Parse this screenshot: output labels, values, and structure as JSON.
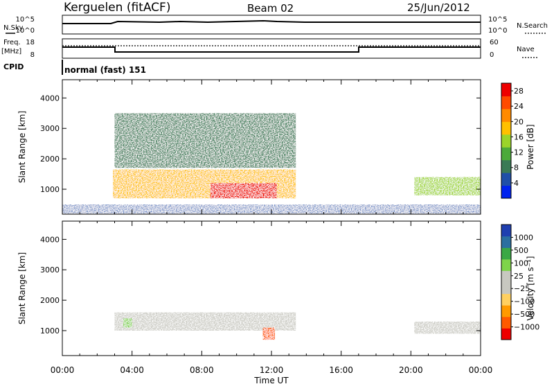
{
  "header": {
    "station": "Kerguelen (fitACF)",
    "beam": "Beam 02",
    "date": "25/Jun/2012"
  },
  "top_panels": {
    "nsky_label": "N.Sky",
    "nsky_ticks": [
      "10^5",
      "10^0"
    ],
    "nsearch_label": "N.Search",
    "nsearch_ticks": [
      "10^5",
      "10^0"
    ],
    "freq_label": "Freq.",
    "freq_unit": "[MHz]",
    "freq_ticks": [
      "18",
      "8"
    ],
    "nave_label": "Nave",
    "nave_ticks": [
      "60",
      "0"
    ],
    "cpid_label": "CPID",
    "cpid_value": "normal (fast) 151"
  },
  "colors": {
    "power": [
      "#0022ee",
      "#1f4fa8",
      "#3a7a55",
      "#4caa3a",
      "#9bd42a",
      "#ffc000",
      "#ff8a00",
      "#ff4a00",
      "#ee0000"
    ],
    "velocity": [
      "#ee0000",
      "#ff5a00",
      "#ff9a00",
      "#ffd060",
      "#c8c8c0",
      "#c8c8c0",
      "#7ed44a",
      "#3aa845",
      "#2b6fa0",
      "#1f3fb0"
    ]
  },
  "chart_data": [
    {
      "type": "heatmap",
      "title": "Power",
      "xlabel": "Time UT",
      "ylabel": "Slant Range [km]",
      "x_ticks": [
        "00:00",
        "04:00",
        "08:00",
        "12:00",
        "16:00",
        "20:00",
        "00:00"
      ],
      "y_ticks": [
        "1000",
        "2000",
        "3000",
        "4000"
      ],
      "ylim": [
        180,
        4600
      ],
      "colorbar": {
        "label": "Power [dB]",
        "ticks": [
          "4",
          "8",
          "12",
          "16",
          "20",
          "24",
          "28"
        ],
        "range": [
          0,
          30
        ]
      },
      "echo_regions": [
        {
          "t_start": 2.9,
          "t_end": 13.4,
          "r_low": 700,
          "r_high": 1650,
          "level": "high"
        },
        {
          "t_start": 3.0,
          "t_end": 13.4,
          "r_low": 1700,
          "r_high": 3500,
          "level": "low"
        },
        {
          "t_start": 8.5,
          "t_end": 12.3,
          "r_low": 700,
          "r_high": 1200,
          "level": "peak"
        },
        {
          "t_start": 20.2,
          "t_end": 24.0,
          "r_low": 800,
          "r_high": 1400,
          "level": "medium"
        },
        {
          "t_start": 0.0,
          "t_end": 24.0,
          "r_low": 200,
          "r_high": 500,
          "level": "ground"
        }
      ]
    },
    {
      "type": "heatmap",
      "title": "Velocity",
      "xlabel": "Time UT",
      "ylabel": "Slant Range [km]",
      "x_ticks": [
        "00:00",
        "04:00",
        "08:00",
        "12:00",
        "16:00",
        "20:00",
        "00:00"
      ],
      "y_ticks": [
        "1000",
        "2000",
        "3000",
        "4000"
      ],
      "ylim": [
        180,
        4600
      ],
      "colorbar": {
        "label": "Velocity [m s⁻¹]",
        "ticks": [
          "1000",
          "500",
          "100",
          "25",
          "−25",
          "−100",
          "−500",
          "−1000"
        ],
        "range": [
          -1000,
          1000
        ]
      },
      "echo_regions": [
        {
          "t_start": 3.0,
          "t_end": 13.4,
          "r_low": 1000,
          "r_high": 1600,
          "level": "near-zero"
        },
        {
          "t_start": 3.5,
          "t_end": 4.0,
          "r_low": 1100,
          "r_high": 1400,
          "level": "positive"
        },
        {
          "t_start": 11.5,
          "t_end": 12.2,
          "r_low": 700,
          "r_high": 1100,
          "level": "negative"
        },
        {
          "t_start": 20.2,
          "t_end": 24.0,
          "r_low": 900,
          "r_high": 1300,
          "level": "near-zero"
        }
      ]
    }
  ]
}
